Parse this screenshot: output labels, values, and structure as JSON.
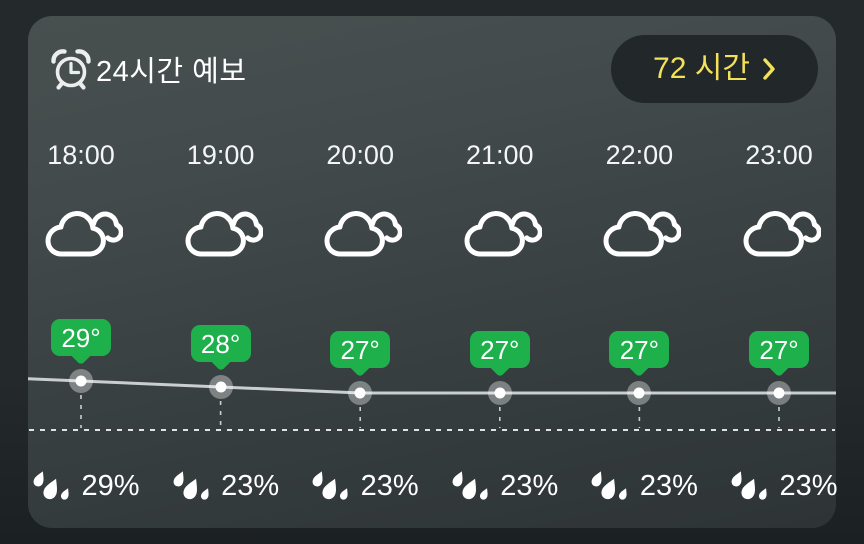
{
  "header": {
    "icon": "alarm-clock-icon",
    "title": "24시간 예보"
  },
  "hours_button": {
    "label": "72 시간",
    "icon": "chevron-right-icon"
  },
  "forecast": {
    "columns": [
      {
        "time": "18:00",
        "condition_icon": "cloudy-icon",
        "temp_label": "29°",
        "temp_c": 29,
        "precip_icon": "raindrops-icon",
        "precip_label": "29%"
      },
      {
        "time": "19:00",
        "condition_icon": "cloudy-icon",
        "temp_label": "28°",
        "temp_c": 28,
        "precip_icon": "raindrops-icon",
        "precip_label": "23%"
      },
      {
        "time": "20:00",
        "condition_icon": "cloudy-icon",
        "temp_label": "27°",
        "temp_c": 27,
        "precip_icon": "raindrops-icon",
        "precip_label": "23%"
      },
      {
        "time": "21:00",
        "condition_icon": "cloudy-icon",
        "temp_label": "27°",
        "temp_c": 27,
        "precip_icon": "raindrops-icon",
        "precip_label": "23%"
      },
      {
        "time": "22:00",
        "condition_icon": "cloudy-icon",
        "temp_label": "27°",
        "temp_c": 27,
        "precip_icon": "raindrops-icon",
        "precip_label": "23%"
      },
      {
        "time": "23:00",
        "condition_icon": "cloudy-icon",
        "temp_label": "27°",
        "temp_c": 27,
        "precip_icon": "raindrops-icon",
        "precip_label": "23%"
      }
    ]
  },
  "chart_data": {
    "type": "line",
    "x": [
      "18:00",
      "19:00",
      "20:00",
      "21:00",
      "22:00",
      "23:00"
    ],
    "series": [
      {
        "name": "temperature_c",
        "values": [
          29,
          28,
          27,
          27,
          27,
          27
        ]
      },
      {
        "name": "precipitation_pct",
        "values": [
          29,
          23,
          23,
          23,
          23,
          23
        ]
      }
    ],
    "point_labels": [
      "29°",
      "28°",
      "27°",
      "27°",
      "27°",
      "27°"
    ],
    "ylim": [
      26,
      30
    ],
    "grid": "dashed-baseline",
    "legend": false
  },
  "colors": {
    "badge_green": "#1eb14b",
    "button_yellow": "#f3e159",
    "line_gray": "#d2d6d7",
    "card_top": "#48504f",
    "card_bottom": "#2e3436"
  }
}
